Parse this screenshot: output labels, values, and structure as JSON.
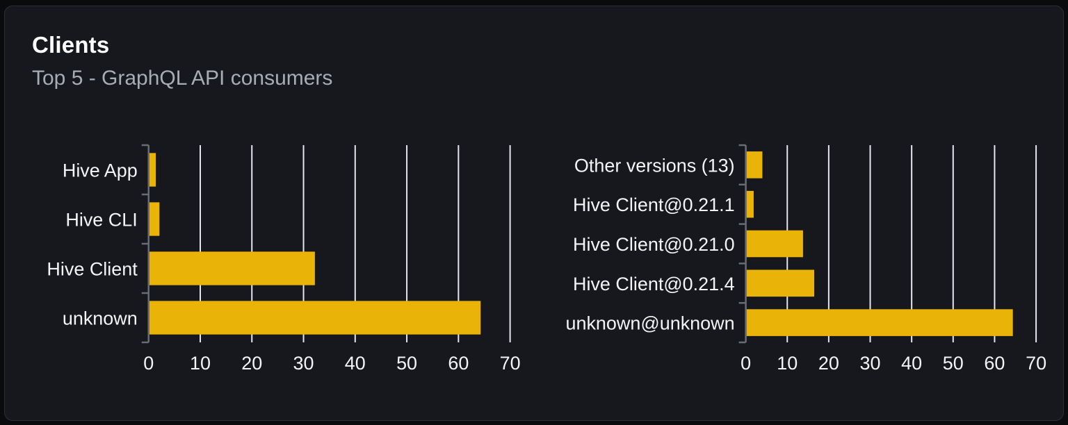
{
  "card": {
    "title": "Clients",
    "subtitle": "Top 5 - GraphQL API consumers"
  },
  "colors": {
    "page_bg": "#0a0b0d",
    "card_bg": "#16181d",
    "card_border": "#2b2f36",
    "title_text": "#ffffff",
    "subtitle_text": "#a7acb5",
    "bar": "#eab308",
    "gridline": "#e4e7ef",
    "axis": "#686d75",
    "tick_label": "#f3f4f6"
  },
  "chart_data": [
    {
      "type": "bar",
      "orientation": "horizontal",
      "title": "",
      "xlabel": "",
      "ylabel": "",
      "categories": [
        "Hive App",
        "Hive CLI",
        "Hive Client",
        "unknown"
      ],
      "values": [
        1.4,
        2.1,
        32.2,
        64.3
      ],
      "xlim": [
        0,
        71
      ],
      "xticks": [
        0,
        10,
        20,
        30,
        40,
        50,
        60,
        70
      ],
      "grid": true,
      "legend": false,
      "bar_color": "#eab308"
    },
    {
      "type": "bar",
      "orientation": "horizontal",
      "title": "",
      "xlabel": "",
      "ylabel": "",
      "categories": [
        "Other versions (13)",
        "Hive Client@0.21.1",
        "Hive Client@0.21.0",
        "Hive Client@0.21.4",
        "unknown@unknown"
      ],
      "values": [
        4.0,
        1.9,
        13.8,
        16.5,
        64.4
      ],
      "xlim": [
        0,
        71
      ],
      "xticks": [
        0,
        10,
        20,
        30,
        40,
        50,
        60,
        70
      ],
      "grid": true,
      "legend": false,
      "bar_color": "#eab308"
    }
  ]
}
